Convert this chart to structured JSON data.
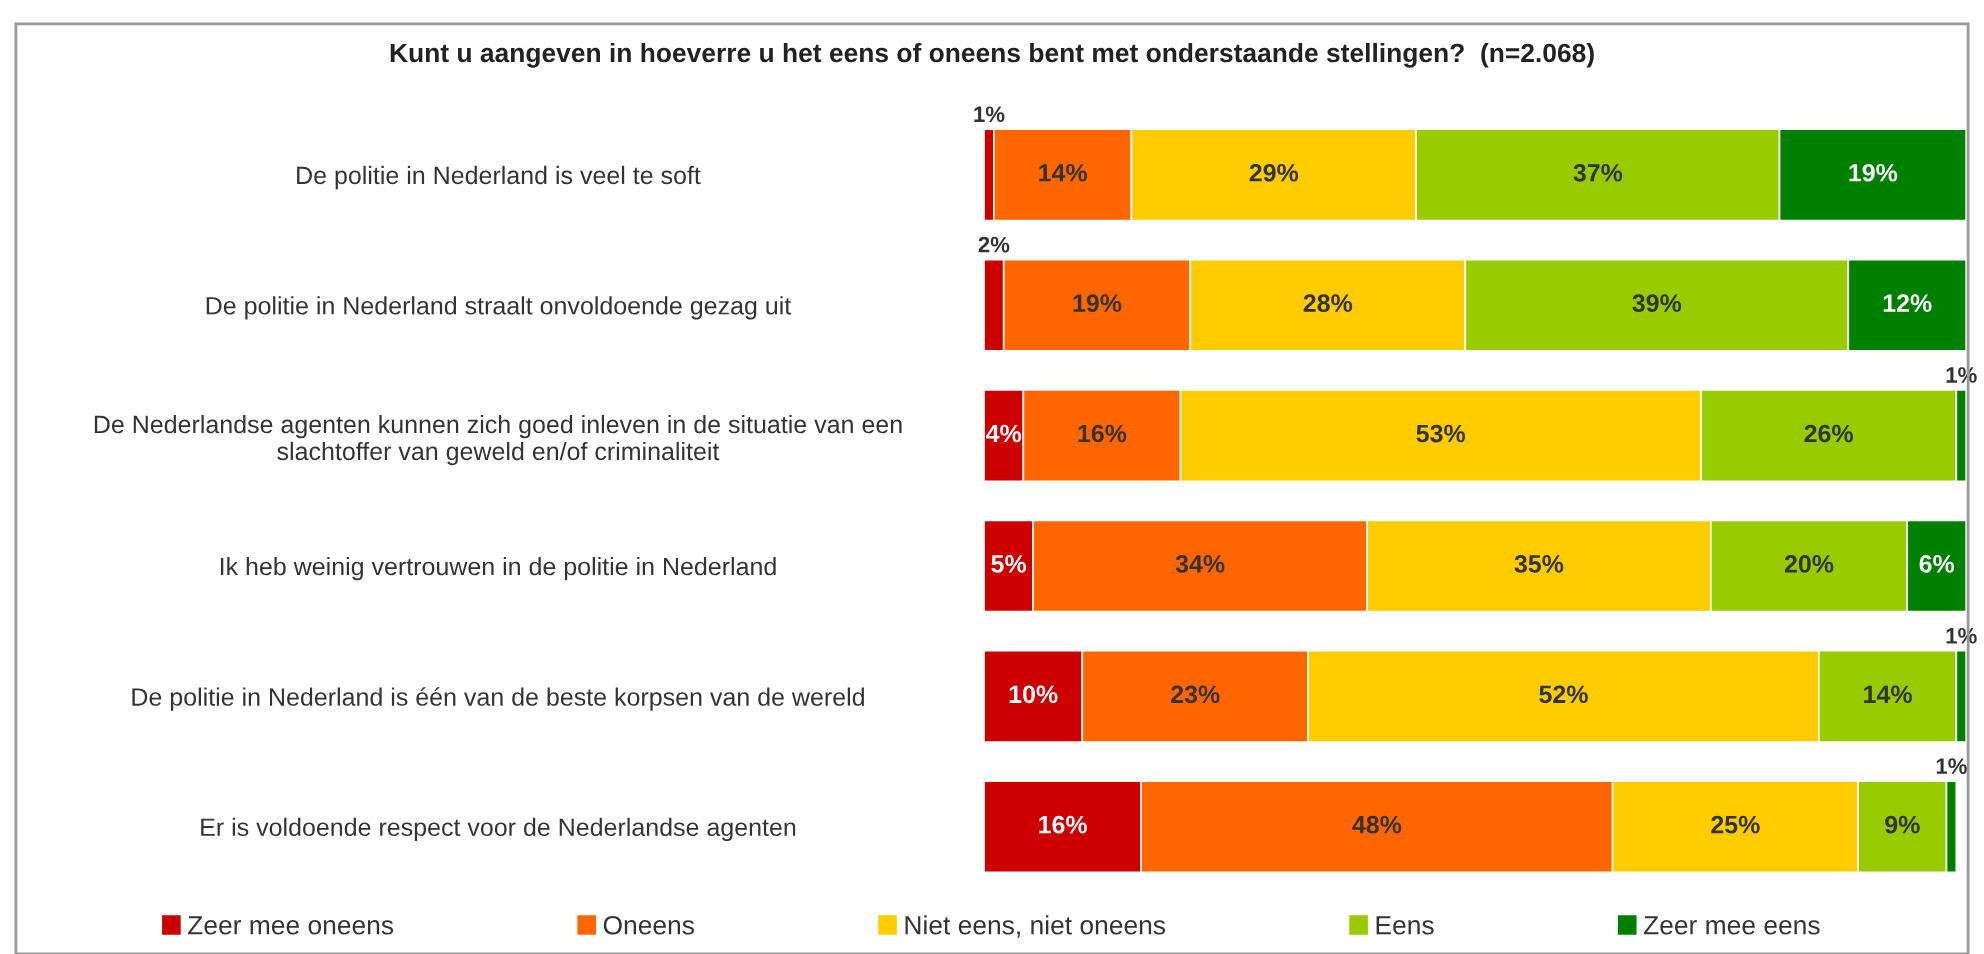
{
  "chart_data": {
    "type": "bar",
    "orientation": "horizontal",
    "stacked": true,
    "title": "Kunt u aangeven in hoeverre u het eens of oneens bent met onderstaande stellingen?  (n=2.068)",
    "categories": [
      "De politie in Nederland is veel te soft",
      "De politie in Nederland straalt onvoldoende gezag uit",
      "De Nederlandse agenten kunnen zich goed inleven in de situatie van een\nslachtoffer van geweld en/of criminaliteit",
      "Ik heb weinig vertrouwen in de politie in Nederland",
      "De politie in Nederland is één van de beste korpsen van de wereld",
      "Er is voldoende respect voor de Nederlandse agenten"
    ],
    "series": [
      {
        "name": "Zeer mee oneens",
        "color": "#cc0000",
        "values": [
          1,
          2,
          4,
          5,
          10,
          16
        ],
        "value_labels": [
          "1%",
          "2%",
          "4%",
          "5%",
          "10%",
          "16%"
        ]
      },
      {
        "name": "Oneens",
        "color": "#ff6600",
        "values": [
          14,
          19,
          16,
          34,
          23,
          48
        ],
        "value_labels": [
          "14%",
          "19%",
          "16%",
          "34%",
          "23%",
          "48%"
        ]
      },
      {
        "name": "Niet eens, niet oneens",
        "color": "#ffcc00",
        "values": [
          29,
          28,
          53,
          35,
          52,
          25
        ],
        "value_labels": [
          "29%",
          "28%",
          "53%",
          "35%",
          "52%",
          "25%"
        ]
      },
      {
        "name": "Eens",
        "color": "#99cc00",
        "values": [
          37,
          39,
          26,
          20,
          14,
          9
        ],
        "value_labels": [
          "37%",
          "39%",
          "26%",
          "20%",
          "14%",
          "9%"
        ]
      },
      {
        "name": "Zeer mee eens",
        "color": "#008000",
        "values": [
          19,
          12,
          1,
          6,
          1,
          1
        ],
        "value_labels": [
          "19%",
          "12%",
          "1%",
          "6%",
          "1%",
          "1%"
        ]
      }
    ],
    "legend": "bottom",
    "grid": false
  }
}
